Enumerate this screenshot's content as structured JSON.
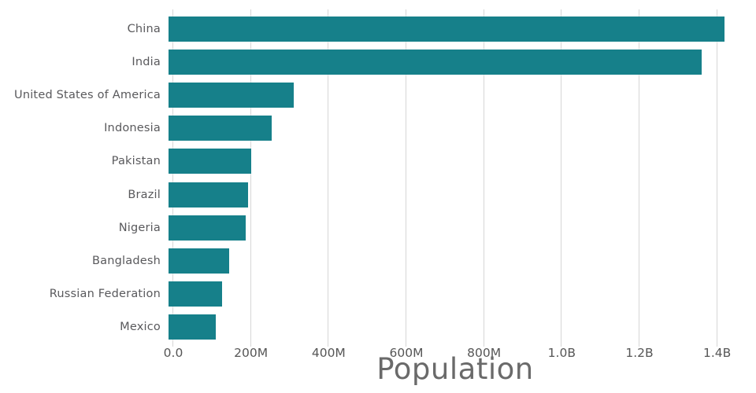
{
  "chart_data": {
    "type": "bar",
    "orientation": "horizontal",
    "title": "Population",
    "xlabel": "Population",
    "ylabel": "",
    "categories": [
      "China",
      "India",
      "United States of America",
      "Indonesia",
      "Pakistan",
      "Brazil",
      "Nigeria",
      "Bangladesh",
      "Russian Federation",
      "Mexico"
    ],
    "values_millions": [
      1439.3,
      1380.0,
      331.0,
      273.5,
      220.9,
      212.6,
      206.1,
      164.7,
      145.9,
      128.9
    ],
    "xlim_millions": [
      0,
      1500
    ],
    "x_ticks": [
      {
        "label": "0.0",
        "value": 0
      },
      {
        "label": "200M",
        "value": 200
      },
      {
        "label": "400M",
        "value": 400
      },
      {
        "label": "600M",
        "value": 600
      },
      {
        "label": "800M",
        "value": 800
      },
      {
        "label": "1.0B",
        "value": 1000
      },
      {
        "label": "1.2B",
        "value": 1200
      },
      {
        "label": "1.4B",
        "value": 1400
      }
    ],
    "grid": "vertical",
    "legend": "none",
    "colors": {
      "bar": "#16808a",
      "bar_edge": "rgba(255,255,255,0.28)",
      "gridline": "#d6d6d6",
      "category_label": "#59595c",
      "tick_label": "#565656",
      "title": "#6a6a6a",
      "background": "#ffffff"
    }
  }
}
